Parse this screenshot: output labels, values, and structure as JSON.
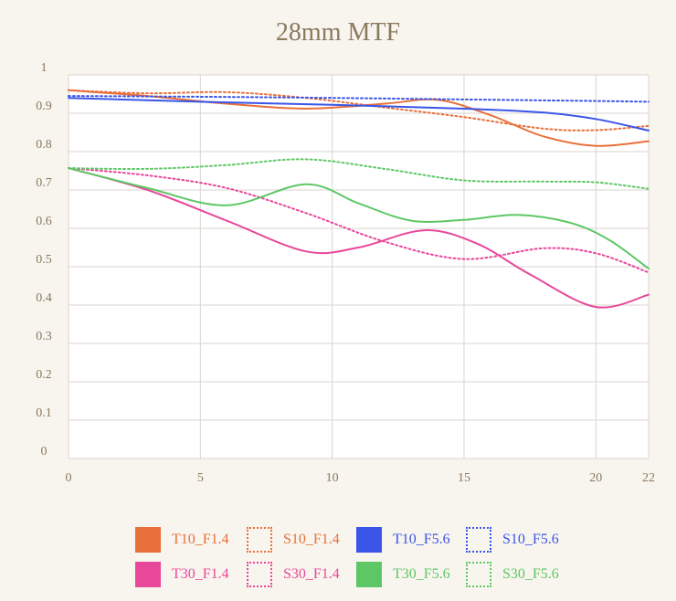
{
  "chart_data": {
    "type": "line",
    "title": "28mm MTF",
    "xlabel": "",
    "ylabel": "",
    "xlim": [
      0,
      22
    ],
    "ylim": [
      0,
      1
    ],
    "xticks": [
      "0",
      "5",
      "10",
      "15",
      "20",
      "22"
    ],
    "yticks": [
      "0",
      "0.1",
      "0.2",
      "0.3",
      "0.4",
      "0.5",
      "0.6",
      "0.7",
      "0.8",
      "0.9",
      "1"
    ],
    "grid": true,
    "legend_position": "bottom",
    "series": [
      {
        "name": "T10_F1.4",
        "color": "#e8703a",
        "style": "solid",
        "x": [
          0,
          3,
          6,
          9,
          12,
          14,
          16,
          18,
          20,
          22
        ],
        "y": [
          0.96,
          0.945,
          0.925,
          0.912,
          0.925,
          0.935,
          0.895,
          0.84,
          0.815,
          0.827
        ]
      },
      {
        "name": "S10_F1.4",
        "color": "#e8703a",
        "style": "dotted",
        "x": [
          0,
          3,
          6,
          9,
          12,
          15,
          18,
          20,
          22
        ],
        "y": [
          0.96,
          0.952,
          0.955,
          0.94,
          0.915,
          0.89,
          0.86,
          0.856,
          0.867
        ]
      },
      {
        "name": "T10_F5.6",
        "color": "#3a55e8",
        "style": "solid",
        "x": [
          0,
          5,
          10,
          15,
          18,
          20,
          22
        ],
        "y": [
          0.94,
          0.93,
          0.922,
          0.912,
          0.902,
          0.885,
          0.855
        ]
      },
      {
        "name": "S10_F5.6",
        "color": "#3a55e8",
        "style": "dotted",
        "x": [
          0,
          5,
          10,
          15,
          20,
          22
        ],
        "y": [
          0.945,
          0.943,
          0.94,
          0.936,
          0.932,
          0.93
        ]
      },
      {
        "name": "T30_F1.4",
        "color": "#e8489a",
        "style": "solid",
        "x": [
          0,
          3,
          6,
          9,
          11,
          13.5,
          15.5,
          17.5,
          20,
          22
        ],
        "y": [
          0.757,
          0.7,
          0.62,
          0.54,
          0.55,
          0.595,
          0.56,
          0.48,
          0.395,
          0.427
        ]
      },
      {
        "name": "S30_F1.4",
        "color": "#e8489a",
        "style": "dotted",
        "x": [
          0,
          3,
          6,
          9,
          12,
          15,
          18,
          20,
          22
        ],
        "y": [
          0.757,
          0.738,
          0.705,
          0.64,
          0.565,
          0.52,
          0.548,
          0.535,
          0.485
        ]
      },
      {
        "name": "T30_F5.6",
        "color": "#5ec765",
        "style": "solid",
        "x": [
          0,
          3,
          6,
          9,
          11,
          13,
          15,
          17,
          19,
          20.5,
          22
        ],
        "y": [
          0.757,
          0.705,
          0.66,
          0.715,
          0.665,
          0.62,
          0.622,
          0.635,
          0.615,
          0.57,
          0.495
        ]
      },
      {
        "name": "S30_F5.6",
        "color": "#5ec765",
        "style": "dotted",
        "x": [
          0,
          3,
          6,
          9,
          12,
          15,
          18,
          20,
          22
        ],
        "y": [
          0.757,
          0.755,
          0.765,
          0.78,
          0.755,
          0.725,
          0.722,
          0.72,
          0.703
        ]
      }
    ]
  }
}
